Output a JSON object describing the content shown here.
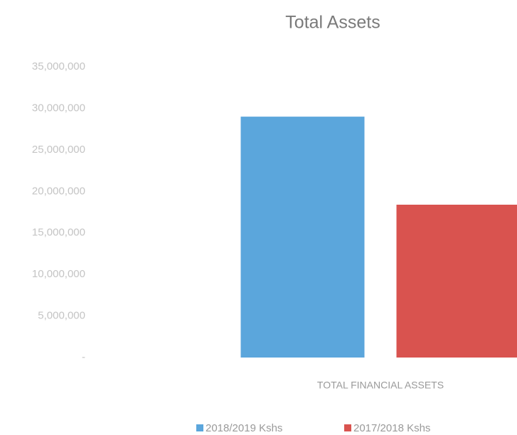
{
  "chart_data": {
    "type": "bar",
    "title": "Total Assets",
    "categories": [
      "TOTAL FINANCIAL ASSETS"
    ],
    "series": [
      {
        "name": "2018/2019 Kshs",
        "color": "#5ba6dc",
        "values": [
          29000000
        ]
      },
      {
        "name": "2017/2018  Kshs",
        "color": "#d9534f",
        "values": [
          18400000
        ]
      }
    ],
    "ylim": [
      0,
      35000000
    ],
    "yticks": [
      {
        "value": 0,
        "label": "-"
      },
      {
        "value": 5000000,
        "label": "5,000,000"
      },
      {
        "value": 10000000,
        "label": "10,000,000"
      },
      {
        "value": 15000000,
        "label": "15,000,000"
      },
      {
        "value": 20000000,
        "label": "20,000,000"
      },
      {
        "value": 25000000,
        "label": "25,000,000"
      },
      {
        "value": 30000000,
        "label": "30,000,000"
      },
      {
        "value": 35000000,
        "label": "35,000,000"
      }
    ],
    "grid": false,
    "legend": "bottom"
  }
}
